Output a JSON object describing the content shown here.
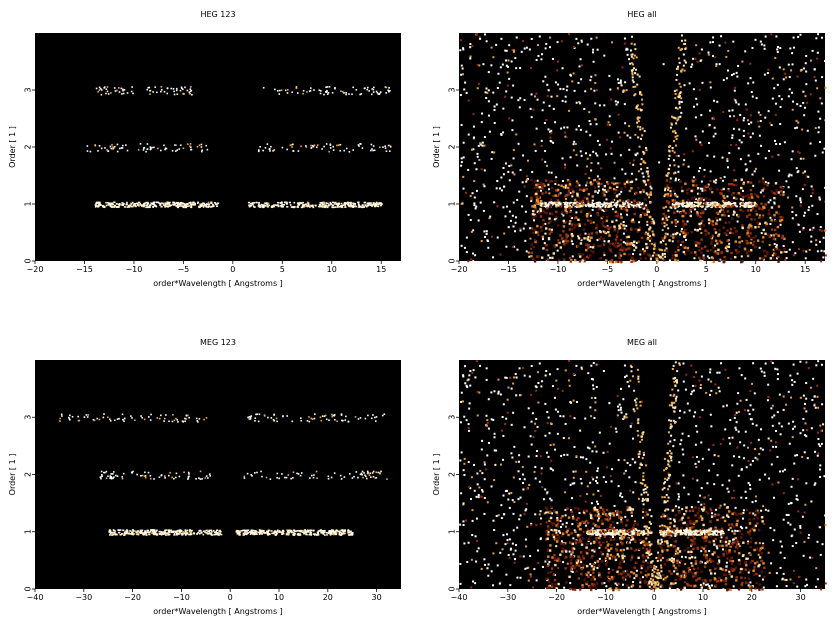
{
  "figure": {
    "background": "#ffffff",
    "plot_background": "#000000"
  },
  "chart_data": [
    {
      "type": "heatmap",
      "title": "HEG 123",
      "xlabel": "order*Wavelength [ Angstroms ]",
      "ylabel": "Order [ 1 ]",
      "xlim": [
        -20,
        17
      ],
      "ylim": [
        0,
        4
      ],
      "xticks": [
        -20,
        -15,
        -10,
        -5,
        0,
        5,
        10,
        15
      ],
      "yticks": [
        0,
        1,
        2,
        3
      ],
      "grid": false,
      "bands": [
        {
          "order": 1,
          "x_ranges": [
            [
              -14,
              -1.5
            ],
            [
              1.5,
              15
            ]
          ],
          "intensity": "high"
        },
        {
          "order": 2,
          "x_ranges": [
            [
              -15,
              -2.5
            ],
            [
              2.5,
              16
            ]
          ],
          "intensity": "low"
        },
        {
          "order": 3,
          "x_ranges": [
            [
              -14,
              -4
            ],
            [
              3,
              16
            ]
          ],
          "intensity": "low"
        }
      ]
    },
    {
      "type": "heatmap",
      "title": "HEG all",
      "xlabel": "order*Wavelength [ Angstroms ]",
      "ylabel": "Order [ 1 ]",
      "xlim": [
        -20,
        17
      ],
      "ylim": [
        0,
        4
      ],
      "xticks": [
        -20,
        -15,
        -10,
        -5,
        0,
        5,
        10,
        15
      ],
      "yticks": [
        0,
        1,
        2,
        3
      ],
      "grid": false,
      "bands": [
        {
          "order": 1,
          "x_ranges": [
            [
              -12,
              -1.5
            ],
            [
              1.5,
              10
            ]
          ],
          "intensity": "high"
        }
      ]
    },
    {
      "type": "heatmap",
      "title": "MEG 123",
      "xlabel": "order*Wavelength [ Angstroms ]",
      "ylabel": "Order [ 1 ]",
      "xlim": [
        -40,
        35
      ],
      "ylim": [
        0,
        4
      ],
      "xticks": [
        -40,
        -30,
        -20,
        -10,
        0,
        10,
        20,
        30
      ],
      "yticks": [
        0,
        1,
        2,
        3
      ],
      "grid": false,
      "bands": [
        {
          "order": 1,
          "x_ranges": [
            [
              -25,
              -2
            ],
            [
              1,
              25
            ]
          ],
          "intensity": "high"
        },
        {
          "order": 2,
          "x_ranges": [
            [
              -27,
              -4
            ],
            [
              2,
              32
            ]
          ],
          "intensity": "low"
        },
        {
          "order": 3,
          "x_ranges": [
            [
              -36,
              -5
            ],
            [
              3,
              32
            ]
          ],
          "intensity": "low"
        }
      ]
    },
    {
      "type": "heatmap",
      "title": "MEG all",
      "xlabel": "order*Wavelength [ Angstroms ]",
      "ylabel": "Order [ 1 ]",
      "xlim": [
        -40,
        35
      ],
      "ylim": [
        0,
        4
      ],
      "xticks": [
        -40,
        -30,
        -20,
        -10,
        0,
        10,
        20,
        30
      ],
      "yticks": [
        0,
        1,
        2,
        3
      ],
      "grid": false,
      "bands": [
        {
          "order": 1,
          "x_ranges": [
            [
              -14,
              -1
            ],
            [
              1,
              14
            ]
          ],
          "intensity": "high"
        }
      ]
    }
  ]
}
